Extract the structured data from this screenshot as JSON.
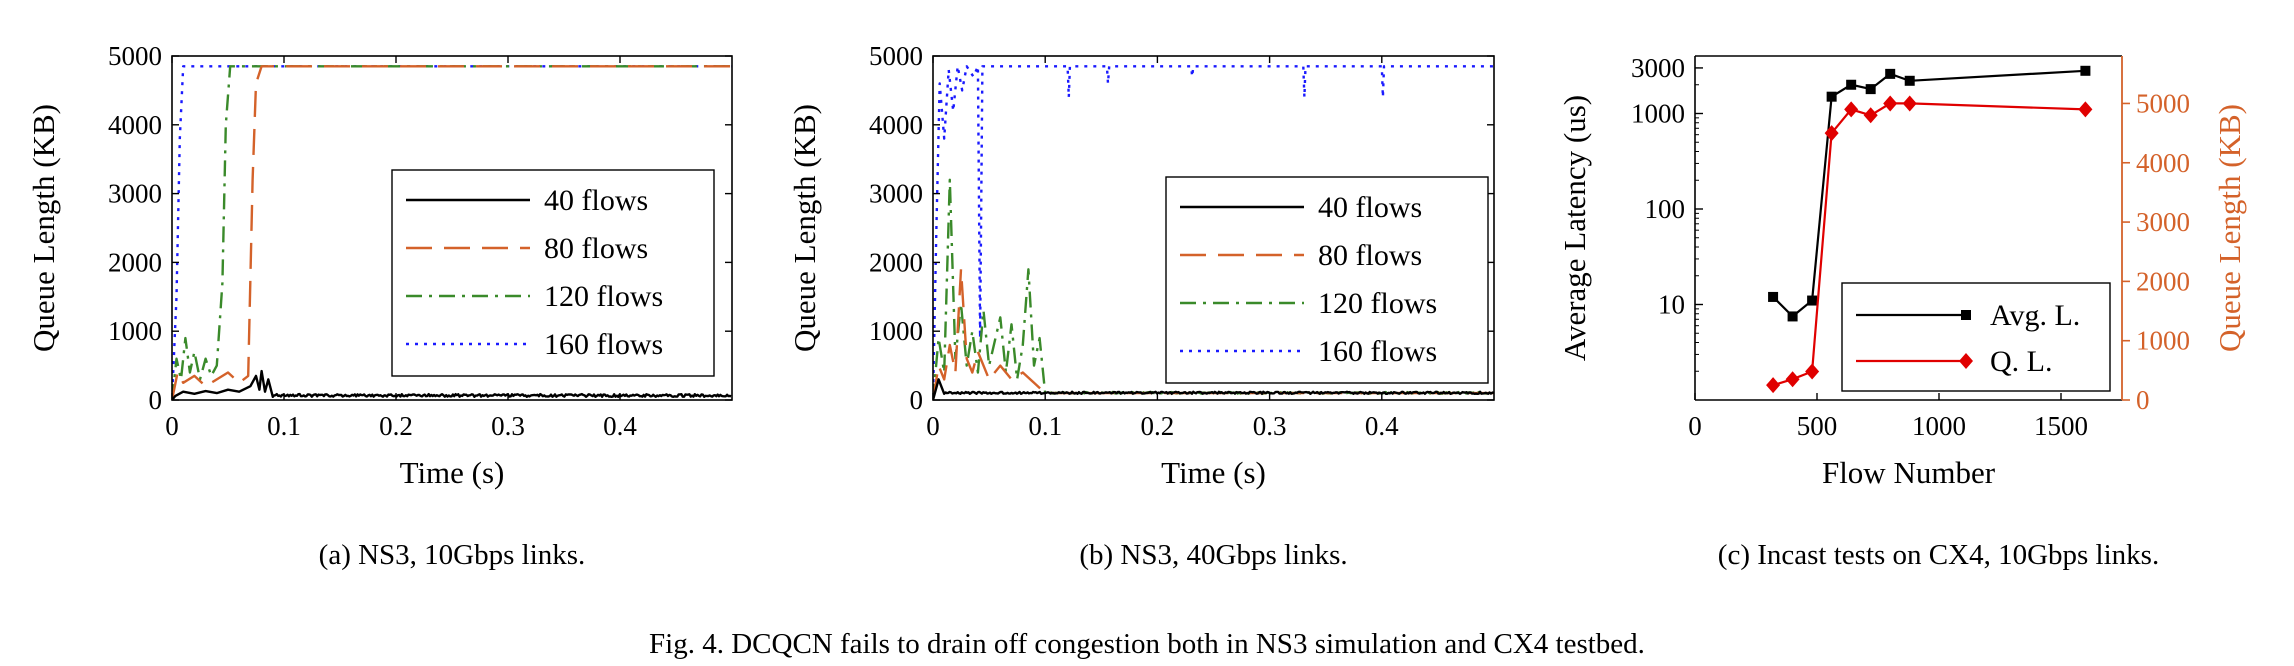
{
  "figure": {
    "caption": "Fig. 4.  DCQCN fails to drain off congestion both in NS3 simulation and CX4 testbed."
  },
  "chart_data": [
    {
      "id": "a",
      "type": "line",
      "caption": "(a) NS3, 10Gbps links.",
      "xlabel": "Time (s)",
      "ylabel": "Queue Length (KB)",
      "xlim": [
        0,
        0.5
      ],
      "ylim": [
        0,
        5000
      ],
      "x_ticks": [
        0,
        0.1,
        0.2,
        0.3,
        0.4
      ],
      "x_tick_labels": [
        "0",
        "0.1",
        "0.2",
        "0.3",
        "0.4"
      ],
      "y_ticks": [
        0,
        1000,
        2000,
        3000,
        4000,
        5000
      ],
      "y_tick_labels": [
        "0",
        "1000",
        "2000",
        "3000",
        "4000",
        "5000"
      ],
      "legend_position": "center-right",
      "series": [
        {
          "name": "40 flows",
          "color": "#000000",
          "dash": "solid",
          "points": [
            [
              0,
              0
            ],
            [
              0.003,
              60
            ],
            [
              0.01,
              120
            ],
            [
              0.02,
              90
            ],
            [
              0.03,
              130
            ],
            [
              0.04,
              100
            ],
            [
              0.05,
              150
            ],
            [
              0.06,
              120
            ],
            [
              0.07,
              200
            ],
            [
              0.075,
              350
            ],
            [
              0.078,
              150
            ],
            [
              0.08,
              420
            ],
            [
              0.083,
              120
            ],
            [
              0.086,
              300
            ],
            [
              0.09,
              80
            ],
            [
              0.1,
              60
            ],
            [
              0.2,
              60
            ],
            [
              0.3,
              60
            ],
            [
              0.4,
              60
            ],
            [
              0.5,
              60
            ]
          ],
          "noise": {
            "from": 0.09,
            "to": 0.5,
            "base": 60,
            "amp": 40
          }
        },
        {
          "name": "80 flows",
          "color": "#d4622a",
          "dash": "long-dash",
          "points": [
            [
              0,
              0
            ],
            [
              0.005,
              400
            ],
            [
              0.01,
              250
            ],
            [
              0.02,
              350
            ],
            [
              0.03,
              200
            ],
            [
              0.04,
              300
            ],
            [
              0.05,
              400
            ],
            [
              0.06,
              250
            ],
            [
              0.068,
              350
            ],
            [
              0.072,
              3200
            ],
            [
              0.075,
              4600
            ],
            [
              0.08,
              4850
            ],
            [
              0.1,
              4850
            ],
            [
              0.2,
              4850
            ],
            [
              0.3,
              4850
            ],
            [
              0.4,
              4850
            ],
            [
              0.5,
              4850
            ]
          ]
        },
        {
          "name": "120 flows",
          "color": "#3a8a2a",
          "dash": "dash-dot",
          "points": [
            [
              0,
              0
            ],
            [
              0.004,
              600
            ],
            [
              0.008,
              300
            ],
            [
              0.012,
              900
            ],
            [
              0.016,
              400
            ],
            [
              0.02,
              700
            ],
            [
              0.025,
              300
            ],
            [
              0.03,
              600
            ],
            [
              0.035,
              350
            ],
            [
              0.04,
              500
            ],
            [
              0.045,
              1700
            ],
            [
              0.048,
              4000
            ],
            [
              0.052,
              4850
            ],
            [
              0.1,
              4850
            ],
            [
              0.2,
              4850
            ],
            [
              0.3,
              4850
            ],
            [
              0.4,
              4850
            ],
            [
              0.5,
              4850
            ]
          ]
        },
        {
          "name": "160 flows",
          "color": "#1a1aff",
          "dash": "dotted",
          "points": [
            [
              0,
              0
            ],
            [
              0.004,
              1500
            ],
            [
              0.007,
              3800
            ],
            [
              0.01,
              4850
            ],
            [
              0.1,
              4850
            ],
            [
              0.2,
              4850
            ],
            [
              0.3,
              4850
            ],
            [
              0.4,
              4850
            ],
            [
              0.5,
              4850
            ]
          ]
        }
      ]
    },
    {
      "id": "b",
      "type": "line",
      "caption": "(b) NS3, 40Gbps links.",
      "xlabel": "Time (s)",
      "ylabel": "Queue Length (KB)",
      "xlim": [
        0,
        0.5
      ],
      "ylim": [
        0,
        5000
      ],
      "x_ticks": [
        0,
        0.1,
        0.2,
        0.3,
        0.4
      ],
      "x_tick_labels": [
        "0",
        "0.1",
        "0.2",
        "0.3",
        "0.4"
      ],
      "y_ticks": [
        0,
        1000,
        2000,
        3000,
        4000,
        5000
      ],
      "y_tick_labels": [
        "0",
        "1000",
        "2000",
        "3000",
        "4000",
        "5000"
      ],
      "legend_position": "center-right",
      "series": [
        {
          "name": "40 flows",
          "color": "#000000",
          "dash": "solid",
          "points": [
            [
              0,
              0
            ],
            [
              0.005,
              300
            ],
            [
              0.01,
              100
            ],
            [
              0.02,
              120
            ],
            [
              0.1,
              100
            ],
            [
              0.2,
              100
            ],
            [
              0.3,
              100
            ],
            [
              0.4,
              100
            ],
            [
              0.5,
              100
            ]
          ],
          "noise": {
            "from": 0.01,
            "to": 0.5,
            "base": 100,
            "amp": 30
          }
        },
        {
          "name": "80 flows",
          "color": "#d4622a",
          "dash": "long-dash",
          "points": [
            [
              0,
              0
            ],
            [
              0.005,
              500
            ],
            [
              0.01,
              300
            ],
            [
              0.015,
              800
            ],
            [
              0.02,
              400
            ],
            [
              0.025,
              1900
            ],
            [
              0.03,
              600
            ],
            [
              0.035,
              400
            ],
            [
              0.04,
              700
            ],
            [
              0.05,
              300
            ],
            [
              0.06,
              500
            ],
            [
              0.07,
              300
            ],
            [
              0.08,
              400
            ],
            [
              0.09,
              250
            ],
            [
              0.1,
              100
            ],
            [
              0.5,
              100
            ]
          ]
        },
        {
          "name": "120 flows",
          "color": "#3a8a2a",
          "dash": "dash-dot",
          "points": [
            [
              0,
              0
            ],
            [
              0.005,
              900
            ],
            [
              0.01,
              400
            ],
            [
              0.015,
              3200
            ],
            [
              0.02,
              600
            ],
            [
              0.025,
              1400
            ],
            [
              0.03,
              500
            ],
            [
              0.035,
              1000
            ],
            [
              0.04,
              400
            ],
            [
              0.045,
              1300
            ],
            [
              0.05,
              500
            ],
            [
              0.06,
              1200
            ],
            [
              0.065,
              400
            ],
            [
              0.07,
              1100
            ],
            [
              0.075,
              300
            ],
            [
              0.08,
              800
            ],
            [
              0.085,
              1900
            ],
            [
              0.09,
              500
            ],
            [
              0.095,
              900
            ],
            [
              0.1,
              100
            ],
            [
              0.2,
              100
            ],
            [
              0.3,
              100
            ],
            [
              0.4,
              100
            ],
            [
              0.5,
              100
            ]
          ],
          "noise": {
            "from": 0.1,
            "to": 0.5,
            "base": 100,
            "amp": 25
          }
        },
        {
          "name": "160 flows",
          "color": "#1a1aff",
          "dash": "dotted",
          "points": [
            [
              0,
              0
            ],
            [
              0.003,
              2500
            ],
            [
              0.006,
              4600
            ],
            [
              0.01,
              3800
            ],
            [
              0.014,
              4800
            ],
            [
              0.018,
              4200
            ],
            [
              0.022,
              4850
            ],
            [
              0.026,
              4500
            ],
            [
              0.03,
              4850
            ],
            [
              0.036,
              4700
            ],
            [
              0.04,
              4850
            ],
            [
              0.042,
              900
            ],
            [
              0.044,
              4850
            ],
            [
              0.12,
              4850
            ],
            [
              0.121,
              4400
            ],
            [
              0.122,
              4850
            ],
            [
              0.155,
              4850
            ],
            [
              0.156,
              4600
            ],
            [
              0.157,
              4850
            ],
            [
              0.23,
              4850
            ],
            [
              0.231,
              4700
            ],
            [
              0.232,
              4850
            ],
            [
              0.33,
              4850
            ],
            [
              0.331,
              4400
            ],
            [
              0.332,
              4850
            ],
            [
              0.4,
              4850
            ],
            [
              0.401,
              4400
            ],
            [
              0.402,
              4850
            ],
            [
              0.5,
              4850
            ]
          ]
        }
      ]
    },
    {
      "id": "c",
      "type": "line",
      "caption": "(c) Incast tests on CX4, 10Gbps links.",
      "xlabel": "Flow Number",
      "ylabel": "Average Latency (us)",
      "y2label": "Queue Length (KB)",
      "xlim": [
        0,
        1750
      ],
      "x_ticks": [
        0,
        500,
        1000,
        1500
      ],
      "x_tick_labels": [
        "0",
        "500",
        "1000",
        "1500"
      ],
      "y_scale": "log",
      "ylim": [
        1,
        4000
      ],
      "y_ticks": [
        10,
        100,
        1000,
        3000
      ],
      "y_tick_labels": [
        "10",
        "100",
        "1000",
        "3000"
      ],
      "y2lim": [
        0,
        5800
      ],
      "y2_ticks": [
        0,
        1000,
        2000,
        3000,
        4000,
        5000
      ],
      "y2_tick_labels": [
        "0",
        "1000",
        "2000",
        "3000",
        "4000",
        "5000"
      ],
      "legend_position": "lower-right",
      "series": [
        {
          "name": "Avg. L.",
          "axis": "left",
          "color": "#000000",
          "marker": "square",
          "x": [
            320,
            400,
            480,
            560,
            640,
            720,
            800,
            880,
            1600
          ],
          "y": [
            12,
            7.5,
            11,
            1500,
            2000,
            1800,
            2600,
            2200,
            2800
          ]
        },
        {
          "name": "Q. L.",
          "axis": "right",
          "color": "#e00000",
          "marker": "diamond",
          "x": [
            320,
            400,
            480,
            560,
            640,
            720,
            800,
            880,
            1600
          ],
          "y": [
            250,
            350,
            480,
            4500,
            4900,
            4800,
            5000,
            5000,
            4900
          ]
        }
      ]
    }
  ]
}
